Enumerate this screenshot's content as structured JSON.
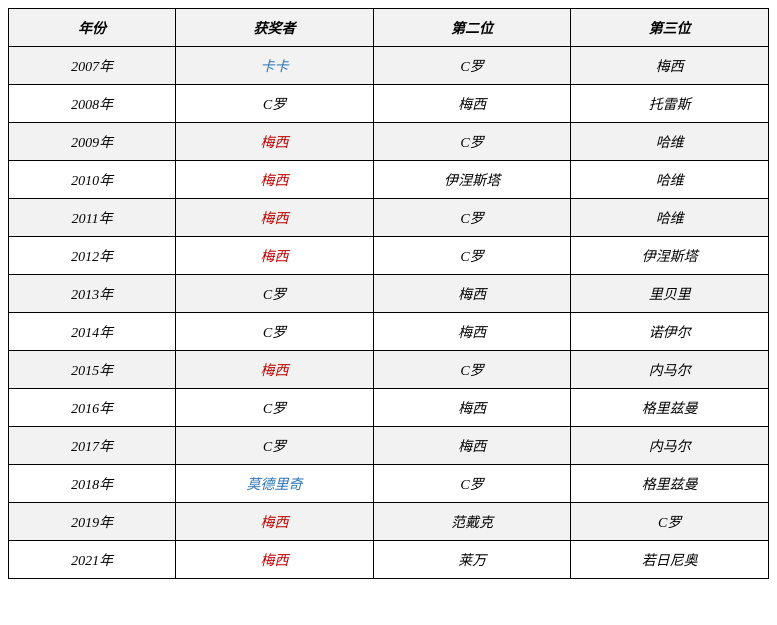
{
  "table": {
    "columns": [
      "年份",
      "获奖者",
      "第二位",
      "第三位"
    ],
    "column_widths": [
      "22%",
      "26%",
      "26%",
      "26%"
    ],
    "header_bg": "#f2f2f2",
    "row_alt_bg": "#f2f2f2",
    "row_bg": "#ffffff",
    "border_color": "#000000",
    "font_style": "italic",
    "font_size": 14,
    "colors": {
      "blue": "#2e75b6",
      "red": "#c00000",
      "default": "#000000"
    },
    "rows": [
      {
        "year": "2007年",
        "winner": "卡卡",
        "winner_color": "blue",
        "second": "C罗",
        "third": "梅西"
      },
      {
        "year": "2008年",
        "winner": "C罗",
        "winner_color": "default",
        "second": "梅西",
        "third": "托雷斯"
      },
      {
        "year": "2009年",
        "winner": "梅西",
        "winner_color": "red",
        "second": "C罗",
        "third": "哈维"
      },
      {
        "year": "2010年",
        "winner": "梅西",
        "winner_color": "red",
        "second": "伊涅斯塔",
        "third": "哈维"
      },
      {
        "year": "2011年",
        "winner": "梅西",
        "winner_color": "red",
        "second": "C罗",
        "third": "哈维"
      },
      {
        "year": "2012年",
        "winner": "梅西",
        "winner_color": "red",
        "second": "C罗",
        "third": "伊涅斯塔"
      },
      {
        "year": "2013年",
        "winner": "C罗",
        "winner_color": "default",
        "second": "梅西",
        "third": "里贝里"
      },
      {
        "year": "2014年",
        "winner": "C罗",
        "winner_color": "default",
        "second": "梅西",
        "third": "诺伊尔"
      },
      {
        "year": "2015年",
        "winner": "梅西",
        "winner_color": "red",
        "second": "C罗",
        "third": "内马尔"
      },
      {
        "year": "2016年",
        "winner": "C罗",
        "winner_color": "default",
        "second": "梅西",
        "third": "格里兹曼"
      },
      {
        "year": "2017年",
        "winner": "C罗",
        "winner_color": "default",
        "second": "梅西",
        "third": "内马尔"
      },
      {
        "year": "2018年",
        "winner": "莫德里奇",
        "winner_color": "blue",
        "second": "C罗",
        "third": "格里兹曼"
      },
      {
        "year": "2019年",
        "winner": "梅西",
        "winner_color": "red",
        "second": "范戴克",
        "third": "C罗"
      },
      {
        "year": "2021年",
        "winner": "梅西",
        "winner_color": "red",
        "second": "莱万",
        "third": "若日尼奥"
      }
    ]
  }
}
